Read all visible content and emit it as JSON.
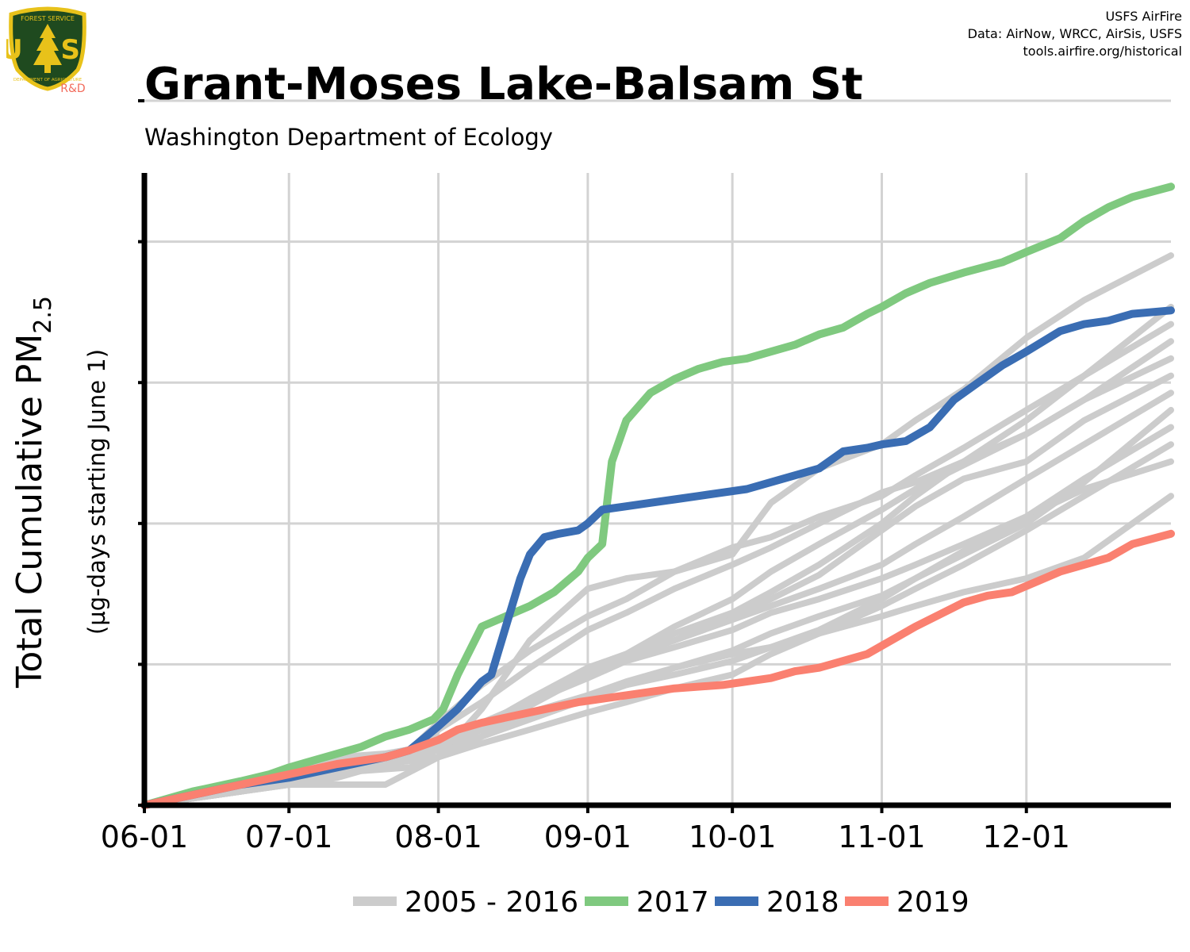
{
  "header": {
    "title": "Grant-Moses Lake-Balsam St",
    "subtitle": "Washington Department of Ecology",
    "credits": [
      "USFS AirFire",
      "Data: AirNow, WRCC, AirSis, USFS",
      "tools.airfire.org/historical"
    ]
  },
  "logo": {
    "top_text": "FOREST SERVICE",
    "letters": "U S",
    "bottom_text": "DEPARTMENT OF AGRICULTURE",
    "badge": "R&D",
    "colors": {
      "shield": "#1f4a1f",
      "rim": "#e8c21a",
      "badge": "#f26b5b"
    }
  },
  "chart_data": {
    "type": "line",
    "ylabel_main": "Total Cumulative PM",
    "ylabel_sub": "2.5",
    "ylabel_secondary": "(µg-days starting June 1)",
    "x_ticks": [
      "06-01",
      "07-01",
      "08-01",
      "09-01",
      "10-01",
      "11-01",
      "12-01"
    ],
    "x_tick_days": [
      0,
      30,
      61,
      92,
      122,
      153,
      183
    ],
    "xlim": [
      0,
      213
    ],
    "y_ticks_unlabeled": 5,
    "grid": true,
    "legend_position": "bottom",
    "colors": {
      "historical": "#cccccc",
      "2017": "#7fc97f",
      "2018": "#3a6db3",
      "2019": "#fa8070",
      "grid": "#d3d3d3"
    },
    "historical_label": "2005 - 2016",
    "historical": [
      {
        "x": [
          0,
          10,
          20,
          30,
          40,
          45,
          55,
          61,
          70,
          80,
          92,
          100,
          110,
          122,
          130,
          140,
          153,
          160,
          170,
          183,
          195,
          213
        ],
        "y": [
          0,
          2,
          4,
          7,
          10,
          13,
          16,
          24,
          35,
          45,
          55,
          60,
          68,
          75,
          78,
          84,
          90,
          96,
          104,
          115,
          125,
          140
        ]
      },
      {
        "x": [
          0,
          10,
          20,
          30,
          40,
          50,
          58,
          61,
          70,
          80,
          92,
          100,
          110,
          122,
          130,
          140,
          153,
          160,
          170,
          183,
          195,
          213
        ],
        "y": [
          0,
          3,
          6,
          8,
          14,
          15,
          17,
          22,
          30,
          40,
          51,
          56,
          63,
          70,
          75,
          82,
          91,
          94,
          100,
          108,
          118,
          130
        ]
      },
      {
        "x": [
          0,
          10,
          20,
          30,
          40,
          45,
          55,
          61,
          70,
          80,
          92,
          100,
          110,
          122,
          130,
          140,
          153,
          160,
          170,
          183,
          195,
          213
        ],
        "y": [
          0,
          2,
          5,
          7,
          9,
          10,
          11,
          14,
          20,
          29,
          40,
          44,
          48,
          55,
          60,
          67,
          80,
          87,
          95,
          100,
          112,
          125
        ]
      },
      {
        "x": [
          0,
          10,
          20,
          30,
          40,
          50,
          61,
          70,
          80,
          92,
          100,
          110,
          122,
          130,
          140,
          153,
          160,
          170,
          183,
          195,
          213
        ],
        "y": [
          0,
          2,
          4,
          6,
          6,
          6,
          14,
          28,
          48,
          63,
          66,
          68,
          73,
          88,
          98,
          105,
          112,
          121,
          136,
          147,
          160
        ]
      },
      {
        "x": [
          0,
          10,
          20,
          30,
          40,
          45,
          50,
          61,
          70,
          80,
          92,
          100,
          110,
          122,
          130,
          140,
          153,
          160,
          170,
          183,
          195,
          213
        ],
        "y": [
          0,
          2,
          4,
          6,
          8,
          10,
          12,
          17,
          22,
          27,
          32,
          36,
          40,
          44,
          46,
          50,
          55,
          58,
          62,
          66,
          72,
          90
        ]
      },
      {
        "x": [
          0,
          10,
          20,
          30,
          40,
          50,
          61,
          70,
          80,
          92,
          100,
          110,
          122,
          130,
          140,
          153,
          160,
          170,
          183,
          195,
          213
        ],
        "y": [
          0,
          2,
          5,
          8,
          11,
          14,
          18,
          23,
          31,
          40,
          44,
          50,
          56,
          62,
          70,
          82,
          90,
          100,
          112,
          125,
          145
        ]
      },
      {
        "x": [
          0,
          10,
          20,
          30,
          40,
          50,
          61,
          70,
          80,
          92,
          100,
          110,
          122,
          130,
          140,
          153,
          160,
          170,
          183,
          195,
          213
        ],
        "y": [
          0,
          2,
          5,
          8,
          11,
          14,
          18,
          22,
          26,
          32,
          35,
          38,
          42,
          46,
          51,
          60,
          66,
          74,
          84,
          95,
          110
        ]
      },
      {
        "x": [
          0,
          10,
          20,
          30,
          40,
          50,
          61,
          70,
          80,
          92,
          100,
          110,
          122,
          130,
          140,
          153,
          160,
          170,
          183,
          195,
          213
        ],
        "y": [
          0,
          2,
          4,
          7,
          10,
          12,
          14,
          18,
          22,
          27,
          30,
          34,
          38,
          44,
          50,
          58,
          63,
          70,
          80,
          90,
          105
        ]
      },
      {
        "x": [
          0,
          10,
          20,
          30,
          40,
          50,
          61,
          70,
          80,
          92,
          100,
          110,
          122,
          130,
          140,
          153,
          160,
          170,
          183,
          195,
          213
        ],
        "y": [
          0,
          2,
          4,
          7,
          10,
          14,
          18,
          24,
          30,
          37,
          42,
          46,
          51,
          56,
          60,
          66,
          70,
          76,
          84,
          92,
          100
        ]
      },
      {
        "x": [
          0,
          10,
          20,
          30,
          40,
          50,
          61,
          70,
          80,
          92,
          100,
          110,
          122,
          130,
          140,
          153,
          160,
          170,
          183,
          195,
          213
        ],
        "y": [
          0,
          2,
          5,
          8,
          11,
          14,
          17,
          23,
          30,
          38,
          43,
          48,
          54,
          58,
          63,
          70,
          76,
          84,
          95,
          105,
          120
        ]
      },
      {
        "x": [
          0,
          10,
          20,
          30,
          40,
          50,
          61,
          70,
          80,
          92,
          100,
          110,
          122,
          130,
          140,
          153,
          160,
          170,
          183,
          195,
          213
        ],
        "y": [
          0,
          2,
          4,
          6,
          9,
          12,
          16,
          20,
          25,
          31,
          35,
          40,
          45,
          50,
          55,
          61,
          66,
          73,
          82,
          94,
          115
        ]
      },
      {
        "x": [
          0,
          10,
          20,
          30,
          40,
          50,
          61,
          70,
          80,
          92,
          100,
          110,
          122,
          130,
          140,
          153,
          160,
          170,
          183,
          195,
          213
        ],
        "y": [
          0,
          2,
          4,
          7,
          10,
          13,
          17,
          22,
          29,
          38,
          44,
          52,
          60,
          68,
          76,
          86,
          92,
          99,
          108,
          118,
          135
        ]
      }
    ],
    "series": [
      {
        "name": "2017",
        "x": [
          0,
          10,
          20,
          26,
          30,
          40,
          45,
          50,
          55,
          60,
          62,
          65,
          70,
          80,
          85,
          90,
          92,
          95,
          97,
          100,
          105,
          110,
          115,
          120,
          125,
          130,
          135,
          140,
          145,
          150,
          153,
          158,
          163,
          170,
          178,
          183,
          190,
          195,
          200,
          205,
          213
        ],
        "y": [
          0,
          4,
          7,
          9,
          11,
          15,
          17,
          20,
          22,
          25,
          28,
          38,
          52,
          58,
          62,
          68,
          72,
          76,
          100,
          112,
          120,
          124,
          127,
          129,
          130,
          132,
          134,
          137,
          139,
          143,
          145,
          149,
          152,
          155,
          158,
          161,
          165,
          170,
          174,
          177,
          180
        ]
      },
      {
        "name": "2018",
        "x": [
          0,
          10,
          20,
          30,
          40,
          50,
          55,
          61,
          65,
          70,
          72,
          75,
          78,
          80,
          83,
          86,
          90,
          92,
          95,
          100,
          105,
          110,
          115,
          120,
          125,
          130,
          135,
          140,
          145,
          150,
          153,
          158,
          163,
          168,
          173,
          178,
          183,
          190,
          195,
          200,
          205,
          213
        ],
        "y": [
          0,
          3,
          6,
          8,
          11,
          14,
          16,
          23,
          28,
          36,
          38,
          52,
          66,
          73,
          78,
          79,
          80,
          82,
          86,
          87,
          88,
          89,
          90,
          91,
          92,
          94,
          96,
          98,
          103,
          104,
          105,
          106,
          110,
          118,
          123,
          128,
          132,
          138,
          140,
          141,
          143,
          144
        ]
      },
      {
        "name": "2019",
        "x": [
          0,
          10,
          20,
          30,
          40,
          50,
          55,
          61,
          65,
          70,
          80,
          90,
          100,
          110,
          120,
          125,
          130,
          135,
          140,
          150,
          155,
          160,
          170,
          175,
          180,
          185,
          190,
          195,
          200,
          205,
          213
        ],
        "y": [
          0,
          3,
          6,
          9,
          12,
          14,
          16,
          19,
          22,
          24,
          27,
          30,
          32,
          34,
          35,
          36,
          37,
          39,
          40,
          44,
          48,
          52,
          59,
          61,
          62,
          65,
          68,
          70,
          72,
          76,
          79
        ]
      }
    ]
  }
}
